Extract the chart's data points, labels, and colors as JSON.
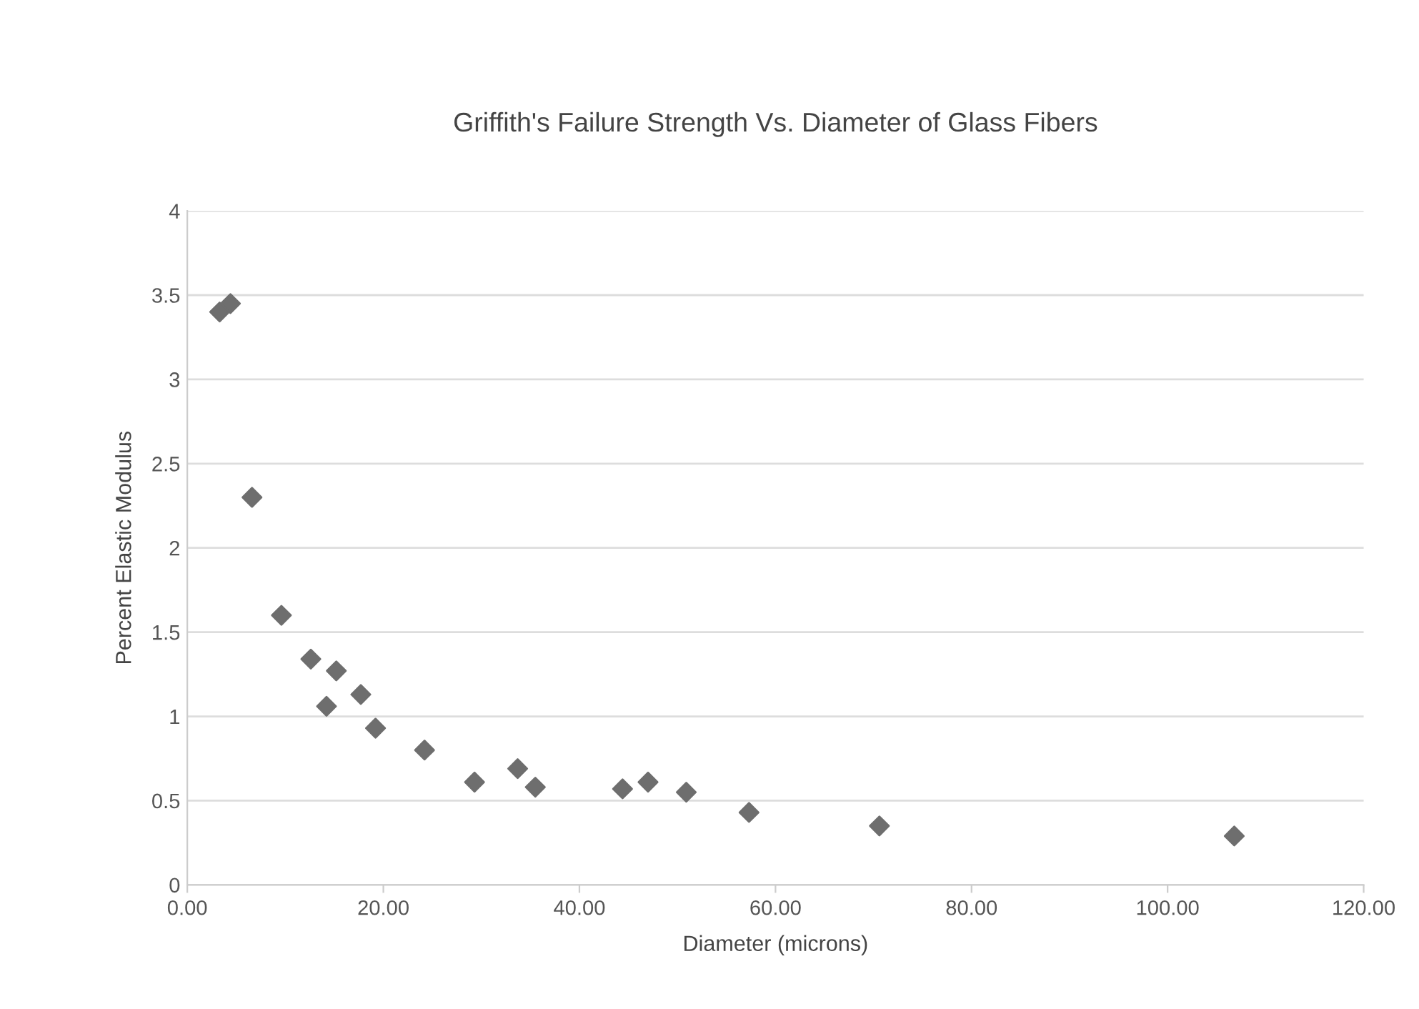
{
  "chart_data": {
    "type": "scatter",
    "title": "Griffith's Failure Strength Vs. Diameter of Glass Fibers",
    "xlabel": "Diameter (microns)",
    "ylabel": "Percent Elastic Modulus",
    "x": [
      3.3,
      4.4,
      6.6,
      9.6,
      12.6,
      14.2,
      15.2,
      17.7,
      19.2,
      24.2,
      29.3,
      33.7,
      35.5,
      44.4,
      47.0,
      50.9,
      57.3,
      70.6,
      106.8
    ],
    "series": [
      {
        "color": "#6e6e6e",
        "values": [
          3.4,
          3.45,
          2.3,
          1.6,
          1.34,
          1.06,
          1.27,
          1.13,
          0.93,
          0.8,
          0.61,
          0.69,
          0.58,
          0.57,
          0.61,
          0.55,
          0.43,
          0.35,
          0.29
        ]
      }
    ],
    "xlim": [
      0,
      120
    ],
    "ylim": [
      0,
      4
    ],
    "xticks": [
      {
        "value": 0,
        "label": "0.00"
      },
      {
        "value": 20,
        "label": "20.00"
      },
      {
        "value": 40,
        "label": "40.00"
      },
      {
        "value": 60,
        "label": "60.00"
      },
      {
        "value": 80,
        "label": "80.00"
      },
      {
        "value": 100,
        "label": "100.00"
      },
      {
        "value": 120,
        "label": "120.00"
      }
    ],
    "yticks": [
      0,
      0.5,
      1,
      1.5,
      2,
      2.5,
      3,
      3.5,
      4
    ],
    "grid": "y",
    "marker": "diamond",
    "legend": false
  }
}
